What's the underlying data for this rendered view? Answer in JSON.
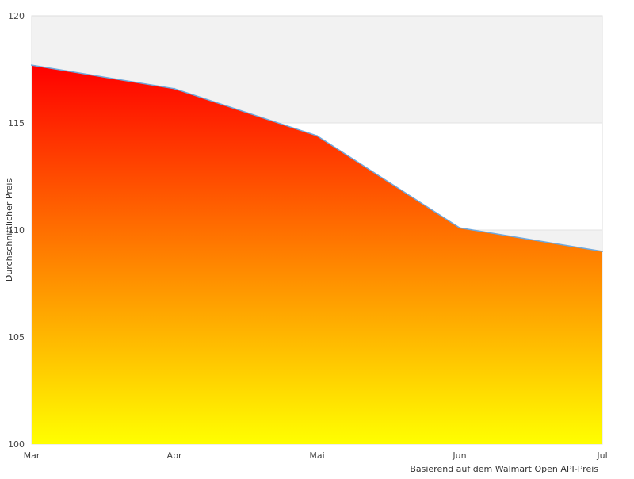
{
  "chart_data": {
    "type": "area",
    "categories": [
      "Mar",
      "Apr",
      "Mai",
      "Jun",
      "Jul"
    ],
    "series": [
      {
        "values": [
          117.7,
          116.6,
          114.4,
          110.1,
          109.0
        ]
      }
    ],
    "ylabel": "Durchschnittlicher Preis",
    "xlabel": "",
    "ylim": [
      100,
      120
    ],
    "yticks": [
      100,
      105,
      110,
      115,
      120
    ],
    "note": "Basierend auf dem Walmart Open API-Preis",
    "grid": true,
    "band_color": "#f2f2f2",
    "line_color": "#6fa8dc",
    "fill_gradient": {
      "top": "#ff0000",
      "bottom": "#ffff00"
    }
  }
}
